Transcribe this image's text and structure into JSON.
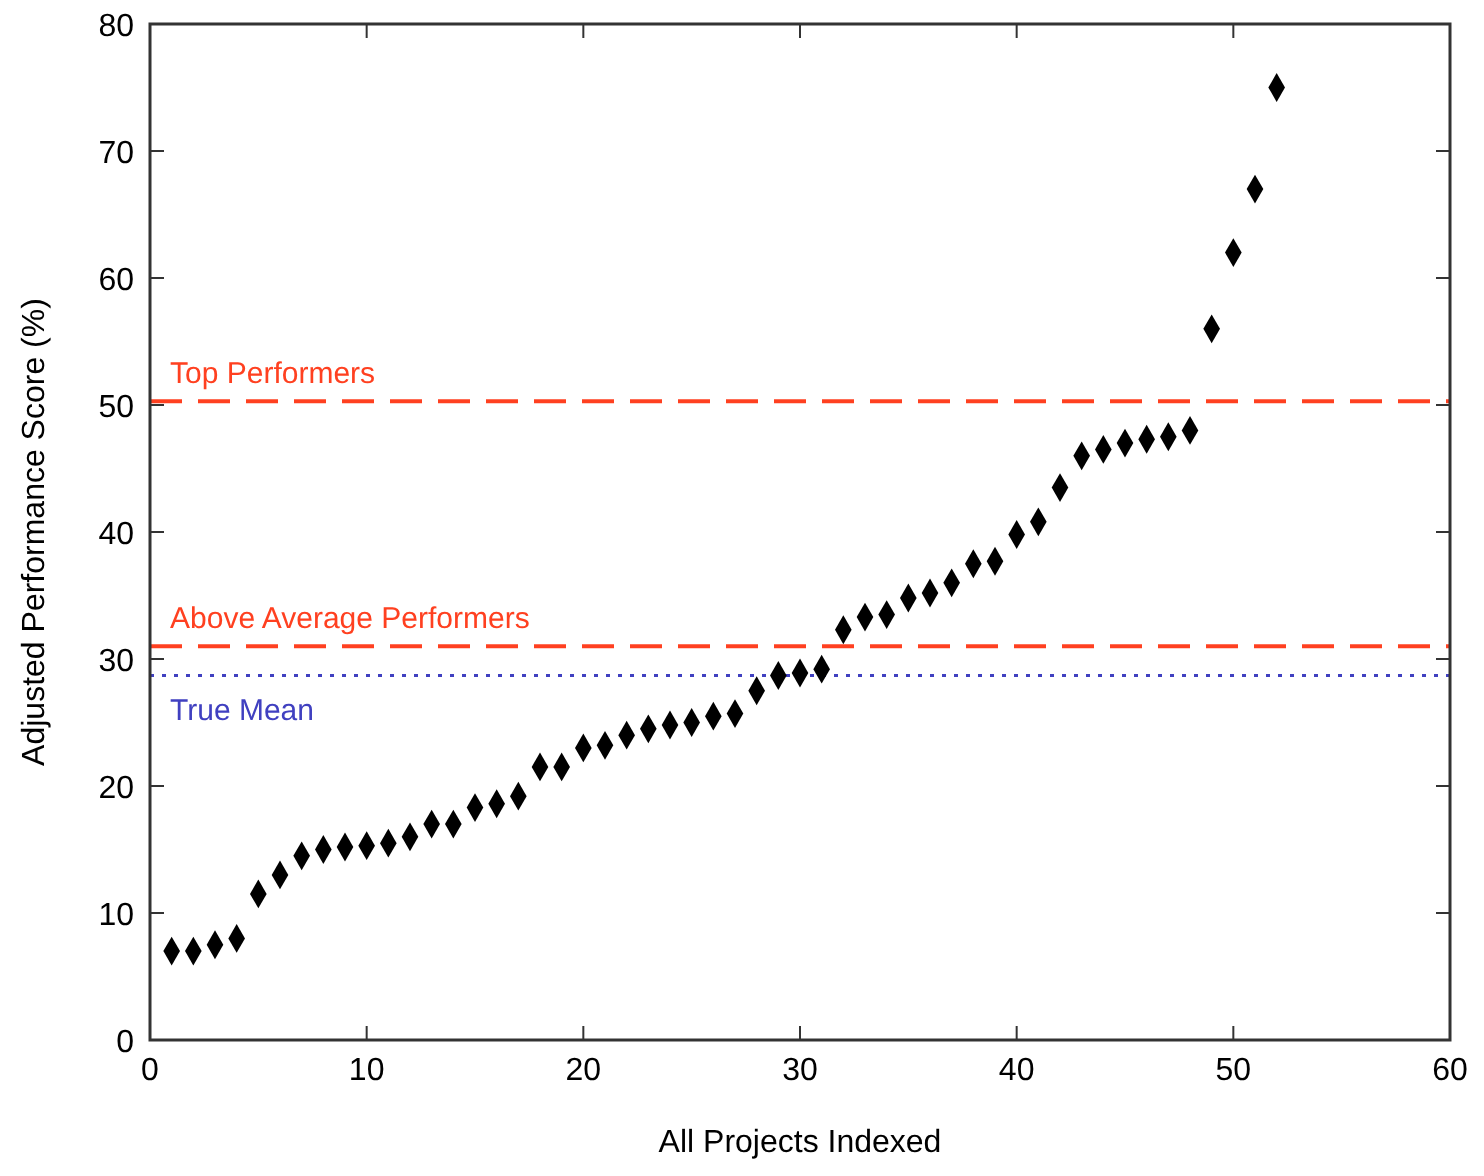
{
  "chart_data": {
    "type": "scatter",
    "xlabel": "All Projects Indexed",
    "ylabel": "Adjusted Performance Score (%)",
    "x": [
      1,
      2,
      3,
      4,
      5,
      6,
      7,
      8,
      9,
      10,
      11,
      12,
      13,
      14,
      15,
      16,
      17,
      18,
      19,
      20,
      21,
      22,
      23,
      24,
      25,
      26,
      27,
      28,
      29,
      30,
      31,
      32,
      33,
      34,
      35,
      36,
      37,
      38,
      39,
      40,
      41,
      42,
      43,
      44,
      45,
      46,
      47,
      48,
      49,
      50,
      51,
      52
    ],
    "series": [
      {
        "color": "#000000",
        "values": [
          7,
          7,
          7.5,
          8,
          11.5,
          13,
          14.5,
          15,
          15.2,
          15.3,
          15.5,
          16,
          17,
          17,
          18.3,
          18.6,
          19.2,
          21.5,
          21.5,
          23,
          23.2,
          24,
          24.5,
          24.8,
          25,
          25.5,
          25.7,
          27.5,
          28.7,
          28.9,
          29.2,
          32.3,
          33.3,
          33.5,
          34.8,
          35.2,
          36,
          37.5,
          37.7,
          39.8,
          40.8,
          43.5,
          46,
          46.5,
          47,
          47.3,
          47.5,
          48,
          56,
          62,
          67,
          75
        ]
      }
    ],
    "marker": "diamond",
    "xlim": [
      0,
      60
    ],
    "xticks": [
      0,
      10,
      20,
      30,
      40,
      50,
      60
    ],
    "ylim": [
      0,
      80
    ],
    "yticks": [
      0,
      10,
      20,
      30,
      40,
      50,
      60,
      70,
      80
    ],
    "grid": false,
    "ref_lines": [
      {
        "axis": "y",
        "value": 50.3,
        "label": "Top Performers",
        "color": "#ff4020",
        "line_style": "dashed"
      },
      {
        "axis": "y",
        "value": 31,
        "label": "Above Average Performers",
        "color": "#ff4020",
        "line_style": "dashed"
      },
      {
        "axis": "y",
        "value": 28.7,
        "label": "True Mean",
        "color": "#4040c0",
        "line_style": "dotted"
      }
    ]
  }
}
